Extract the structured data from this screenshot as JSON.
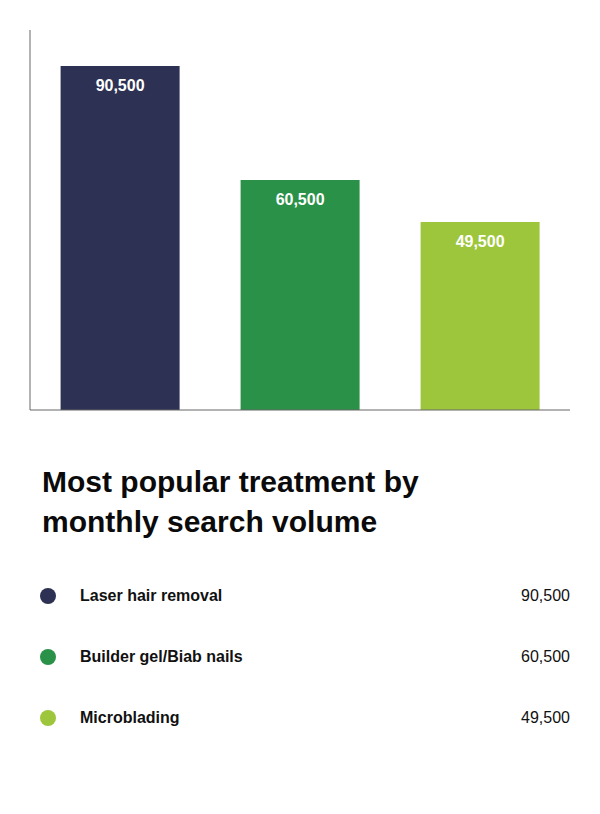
{
  "chart_data": {
    "type": "bar",
    "title": "Most popular treatment by\nmonthly search volume",
    "categories": [
      "Laser hair removal",
      "Builder gel/Biab nails",
      "Microblading"
    ],
    "values": [
      90500,
      60500,
      49500
    ],
    "value_labels": [
      "90,500",
      "60,500",
      "49,500"
    ],
    "colors": [
      "#2d3153",
      "#2a9148",
      "#9dc63c"
    ],
    "ylim": [
      0,
      100000
    ],
    "data_labels": true,
    "tick_labels": false,
    "grid": false,
    "legend": "bottom"
  }
}
